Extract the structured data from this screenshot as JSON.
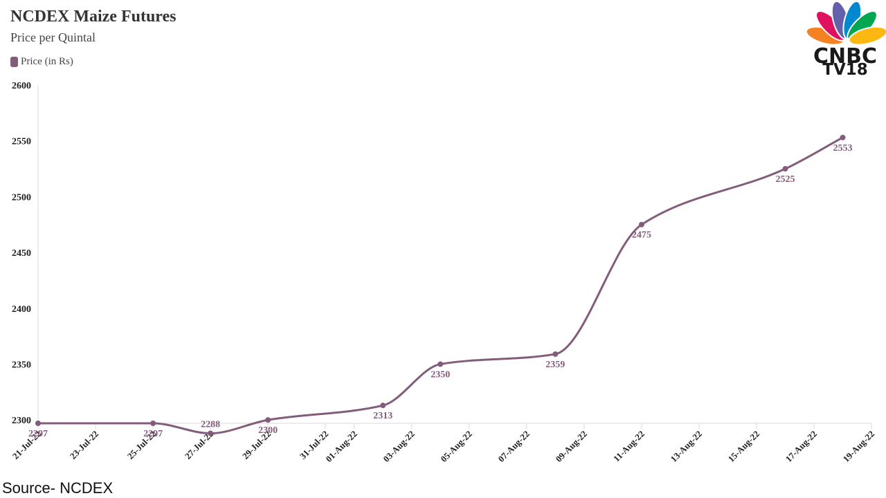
{
  "header": {
    "title": "NCDEX Maize Futures",
    "subtitle": "Price per Quintal"
  },
  "brand": {
    "logo_line1": "CNBC",
    "logo_line2": "TV18",
    "peacock_colors": [
      "#f58220",
      "#e0115f",
      "#6460aa",
      "#0089d0",
      "#00a651",
      "#fcb711"
    ]
  },
  "footer": {
    "source": "Source- NCDEX"
  },
  "chart_data": {
    "type": "line",
    "title": "NCDEX Maize Futures",
    "subtitle": "Price per Quintal",
    "xlabel": "",
    "ylabel": "",
    "ylim": [
      2297,
      2600
    ],
    "y_ticks": [
      2300,
      2350,
      2400,
      2450,
      2500,
      2550,
      2600
    ],
    "x_range": [
      "2022-07-21",
      "2022-08-19"
    ],
    "x_ticks": [
      {
        "date": "2022-07-21",
        "label": "21-Jul-22"
      },
      {
        "date": "2022-07-23",
        "label": "23-Jul-22"
      },
      {
        "date": "2022-07-25",
        "label": "25-Jul-22"
      },
      {
        "date": "2022-07-27",
        "label": "27-Jul-22"
      },
      {
        "date": "2022-07-29",
        "label": "29-Jul-22"
      },
      {
        "date": "2022-07-31",
        "label": "31-Jul-22"
      },
      {
        "date": "2022-08-01",
        "label": "01-Aug-22"
      },
      {
        "date": "2022-08-03",
        "label": "03-Aug-22"
      },
      {
        "date": "2022-08-05",
        "label": "05-Aug-22"
      },
      {
        "date": "2022-08-07",
        "label": "07-Aug-22"
      },
      {
        "date": "2022-08-09",
        "label": "09-Aug-22"
      },
      {
        "date": "2022-08-11",
        "label": "11-Aug-22"
      },
      {
        "date": "2022-08-13",
        "label": "13-Aug-22"
      },
      {
        "date": "2022-08-15",
        "label": "15-Aug-22"
      },
      {
        "date": "2022-08-17",
        "label": "17-Aug-22"
      },
      {
        "date": "2022-08-19",
        "label": "19-Aug-22"
      }
    ],
    "grid": false,
    "legend_position": "top-left",
    "series": [
      {
        "name": "Price (in Rs)",
        "color": "#835c7c",
        "points": [
          {
            "x": "2022-07-21",
            "y": 2297
          },
          {
            "x": "2022-07-25",
            "y": 2297
          },
          {
            "x": "2022-07-27",
            "y": 2288
          },
          {
            "x": "2022-07-29",
            "y": 2300
          },
          {
            "x": "2022-08-02",
            "y": 2313
          },
          {
            "x": "2022-08-04",
            "y": 2350
          },
          {
            "x": "2022-08-08",
            "y": 2359
          },
          {
            "x": "2022-08-11",
            "y": 2475
          },
          {
            "x": "2022-08-16",
            "y": 2525
          },
          {
            "x": "2022-08-18",
            "y": 2553
          }
        ]
      }
    ]
  }
}
